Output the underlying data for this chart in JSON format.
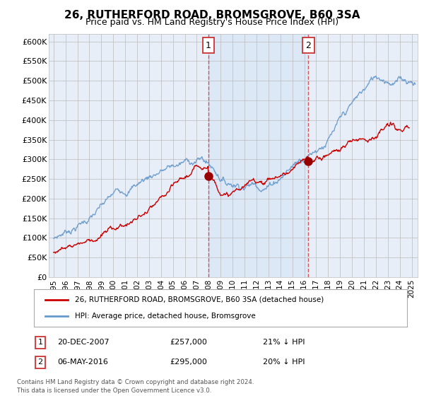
{
  "title": "26, RUTHERFORD ROAD, BROMSGROVE, B60 3SA",
  "subtitle": "Price paid vs. HM Land Registry's House Price Index (HPI)",
  "ylabel_ticks": [
    "£0",
    "£50K",
    "£100K",
    "£150K",
    "£200K",
    "£250K",
    "£300K",
    "£350K",
    "£400K",
    "£450K",
    "£500K",
    "£550K",
    "£600K"
  ],
  "ylim": [
    0,
    620000
  ],
  "ytick_vals": [
    0,
    50000,
    100000,
    150000,
    200000,
    250000,
    300000,
    350000,
    400000,
    450000,
    500000,
    550000,
    600000
  ],
  "x_start_year": 1995,
  "x_end_year": 2025,
  "marker1": {
    "year": 2007.97,
    "value": 257000,
    "label": "1",
    "date": "20-DEC-2007",
    "price": "£257,000",
    "pct": "21% ↓ HPI"
  },
  "marker2": {
    "year": 2016.35,
    "value": 295000,
    "label": "2",
    "date": "06-MAY-2016",
    "price": "£295,000",
    "pct": "20% ↓ HPI"
  },
  "legend_entry1": "26, RUTHERFORD ROAD, BROMSGROVE, B60 3SA (detached house)",
  "legend_entry2": "HPI: Average price, detached house, Bromsgrove",
  "footnote": "Contains HM Land Registry data © Crown copyright and database right 2024.\nThis data is licensed under the Open Government Licence v3.0.",
  "bg_color": "#e8eef8",
  "shaded_color": "#dce8f5",
  "grid_color": "#bbbbbb",
  "line_color_red": "#cc0000",
  "line_color_blue": "#6699cc",
  "marker_color": "#990000",
  "title_fontsize": 11,
  "subtitle_fontsize": 9
}
